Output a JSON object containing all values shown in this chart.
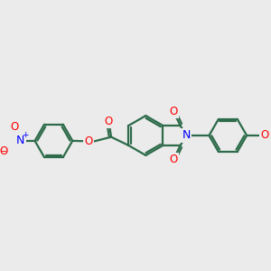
{
  "bg_color": "#ebebeb",
  "bond_color": "#2d6b4a",
  "bond_width": 1.6,
  "atom_colors": {
    "O": "#ff0000",
    "N": "#0000ff"
  },
  "font_size": 8.5
}
